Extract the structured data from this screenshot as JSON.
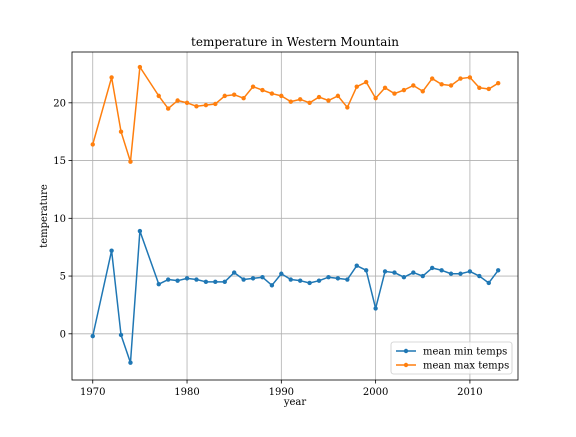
{
  "chart_data": {
    "type": "line",
    "title": "temperature in Western Mountain",
    "xlabel": "year",
    "ylabel": "temperature",
    "xlim": [
      1967.8,
      2015.1
    ],
    "ylim": [
      -4.0,
      24.4
    ],
    "xticks": [
      1970,
      1980,
      1990,
      2000,
      2010
    ],
    "yticks": [
      0,
      5,
      10,
      15,
      20
    ],
    "grid": true,
    "legend_position": "lower-right",
    "x": [
      1970,
      1972,
      1973,
      1974,
      1975,
      1977,
      1978,
      1979,
      1980,
      1981,
      1982,
      1983,
      1984,
      1985,
      1986,
      1987,
      1988,
      1989,
      1990,
      1991,
      1992,
      1993,
      1994,
      1995,
      1996,
      1997,
      1998,
      1999,
      2000,
      2001,
      2002,
      2003,
      2004,
      2005,
      2006,
      2007,
      2008,
      2009,
      2010,
      2011,
      2012,
      2013
    ],
    "series": [
      {
        "name": "mean min temps",
        "color": "#1f77b4",
        "values": [
          -0.2,
          7.2,
          -0.1,
          -2.5,
          8.9,
          4.3,
          4.7,
          4.6,
          4.8,
          4.7,
          4.5,
          4.5,
          4.5,
          5.3,
          4.7,
          4.8,
          4.9,
          4.2,
          5.2,
          4.7,
          4.6,
          4.4,
          4.6,
          4.9,
          4.8,
          4.7,
          5.9,
          5.5,
          2.2,
          5.4,
          5.3,
          4.9,
          5.3,
          5.0,
          5.7,
          5.5,
          5.2,
          5.2,
          5.4,
          5.0,
          4.4,
          5.5
        ]
      },
      {
        "name": "mean max temps",
        "color": "#ff7f0e",
        "values": [
          16.4,
          22.2,
          17.5,
          14.9,
          23.1,
          20.6,
          19.5,
          20.2,
          20.0,
          19.7,
          19.8,
          19.9,
          20.6,
          20.7,
          20.4,
          21.4,
          21.1,
          20.8,
          20.6,
          20.1,
          20.3,
          20.0,
          20.5,
          20.2,
          20.6,
          19.6,
          21.4,
          21.8,
          20.4,
          21.3,
          20.8,
          21.1,
          21.5,
          21.0,
          22.1,
          21.6,
          21.5,
          22.1,
          22.2,
          21.3,
          21.2,
          21.7
        ]
      }
    ]
  }
}
